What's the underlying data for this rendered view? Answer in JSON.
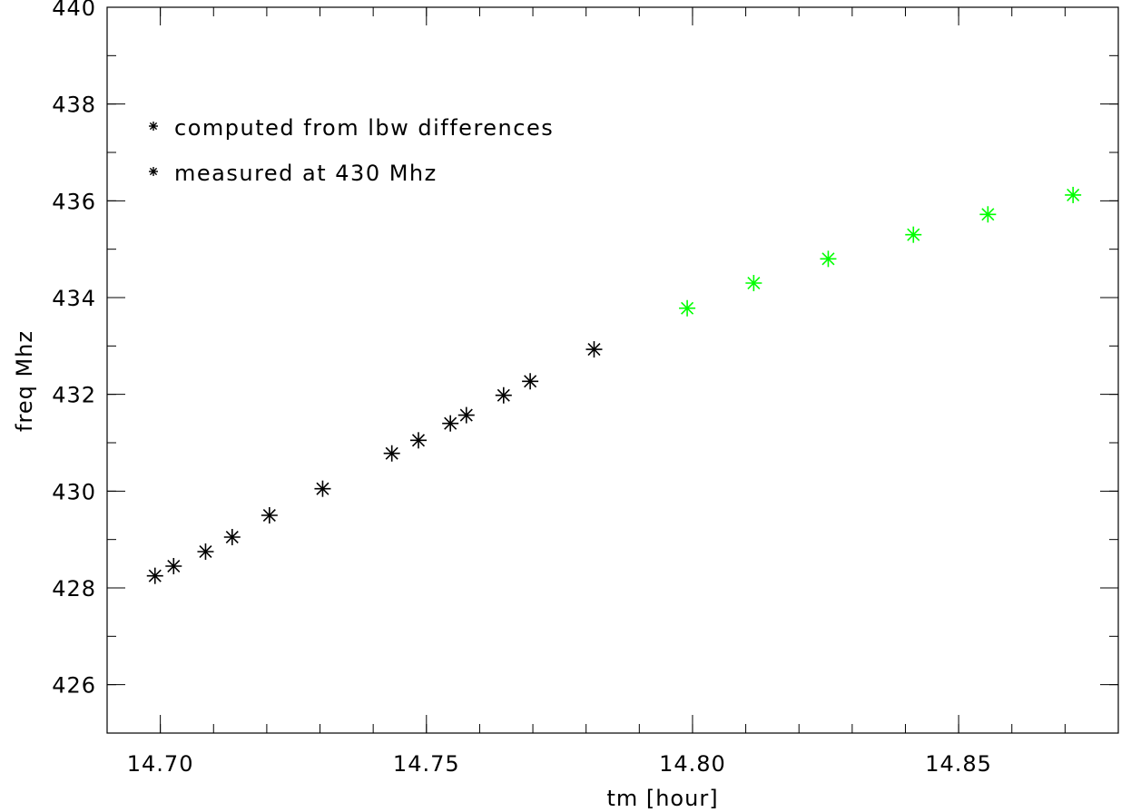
{
  "chart_data": {
    "type": "scatter",
    "title": "",
    "xlabel": "tm [hour]",
    "ylabel": "freq Mhz",
    "xlim": [
      14.69,
      14.88
    ],
    "ylim": [
      425,
      440
    ],
    "xticks": [
      14.7,
      14.75,
      14.8,
      14.85
    ],
    "xtick_labels": [
      "14.70",
      "14.75",
      "14.80",
      "14.85"
    ],
    "yticks": [
      426,
      428,
      430,
      432,
      434,
      436,
      438,
      440
    ],
    "ytick_labels": [
      "426",
      "428",
      "430",
      "432",
      "434",
      "436",
      "438",
      "440"
    ],
    "grid": false,
    "legend_position": "top-left",
    "marker": "asterisk",
    "series": [
      {
        "name": "computed from lbw differences",
        "color": "#000000",
        "x": [
          14.699,
          14.7025,
          14.7085,
          14.7135,
          14.7205,
          14.7305,
          14.7435,
          14.7485,
          14.7545,
          14.7575,
          14.7645,
          14.7695,
          14.7815
        ],
        "y": [
          428.25,
          428.45,
          428.75,
          429.05,
          429.5,
          430.05,
          430.78,
          431.05,
          431.4,
          431.57,
          431.98,
          432.27,
          432.93
        ]
      },
      {
        "name": "measured at 430 Mhz",
        "color": "#00ff00",
        "x": [
          14.799,
          14.8115,
          14.8255,
          14.8415,
          14.8555,
          14.8715
        ],
        "y": [
          433.78,
          434.3,
          434.8,
          435.3,
          435.72,
          436.12
        ]
      }
    ]
  }
}
